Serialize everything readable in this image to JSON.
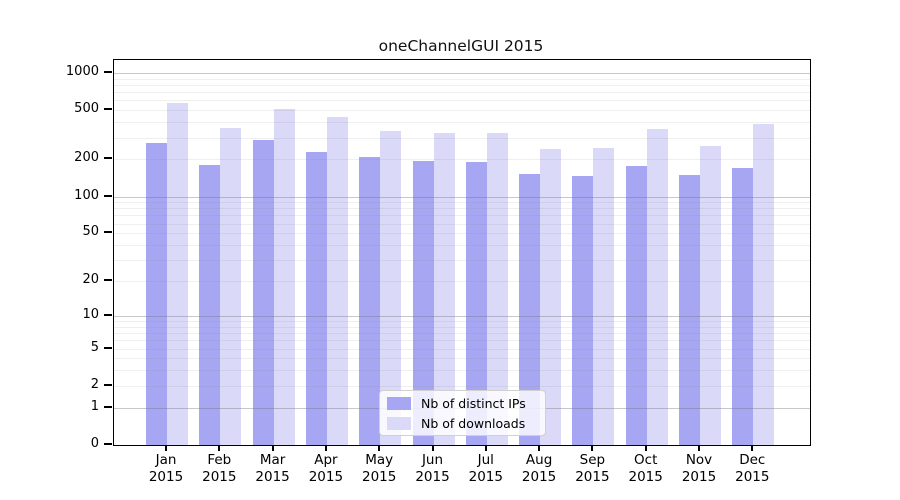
{
  "chart_data": {
    "type": "bar",
    "title": "oneChannelGUI 2015",
    "categories": [
      "Jan",
      "Feb",
      "Mar",
      "Apr",
      "May",
      "Jun",
      "Jul",
      "Aug",
      "Sep",
      "Oct",
      "Nov",
      "Dec"
    ],
    "category_year": "2015",
    "series": [
      {
        "name": "Nb of distinct IPs",
        "color": "#a6a6f2",
        "values": [
          270,
          180,
          290,
          230,
          210,
          195,
          190,
          152,
          146,
          178,
          150,
          170
        ]
      },
      {
        "name": "Nb of downloads",
        "color": "#dadaf8",
        "values": [
          575,
          360,
          510,
          440,
          340,
          330,
          325,
          243,
          247,
          353,
          257,
          388
        ]
      }
    ],
    "xlabel": "",
    "ylabel": "",
    "y_ticks": [
      0,
      1,
      2,
      5,
      10,
      20,
      50,
      100,
      200,
      500,
      1000
    ],
    "y_scale": "log10(value+1)",
    "ylim": [
      0,
      1250
    ],
    "grid": "horizontal major and minor gridlines",
    "legend_position": "inside plot, lower center-left"
  },
  "colors": {
    "distinct_ips_bar": "#a6a6f2",
    "downloads_bar": "#dadaf8",
    "frame": "#000000",
    "major_gridline": "#c3c3c8",
    "minor_gridline": "#ededef",
    "background": "#ffffff"
  }
}
